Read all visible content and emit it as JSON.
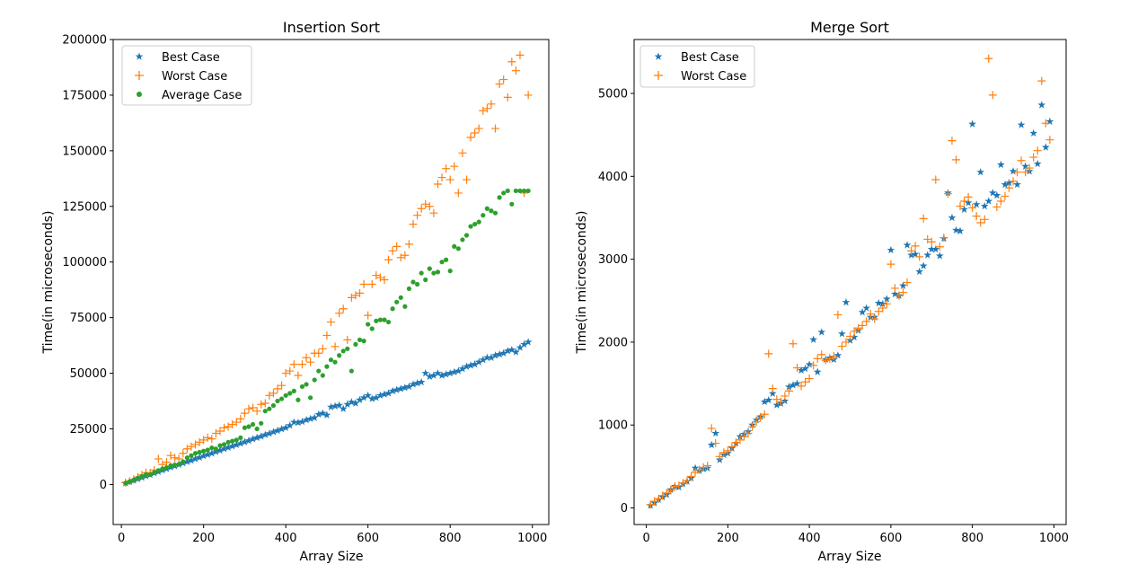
{
  "chart_data": [
    {
      "type": "scatter",
      "title": "Insertion Sort",
      "xlabel": "Array Size",
      "ylabel": "Time(in microseconds)",
      "xlim": [
        -20,
        1040
      ],
      "ylim": [
        -18000,
        200000
      ],
      "xticks": [
        "0",
        "200",
        "400",
        "600",
        "800",
        "1000"
      ],
      "yticks": [
        "0",
        "25000",
        "50000",
        "75000",
        "100000",
        "125000",
        "150000",
        "175000",
        "200000"
      ],
      "grid": false,
      "legend_position": "top-left",
      "series": [
        {
          "name": "Best Case",
          "marker": "star",
          "color": "#1f77b4",
          "x": [
            10,
            20,
            30,
            40,
            50,
            60,
            70,
            80,
            90,
            100,
            110,
            120,
            130,
            140,
            150,
            160,
            170,
            180,
            190,
            200,
            210,
            220,
            230,
            240,
            250,
            260,
            270,
            280,
            290,
            300,
            310,
            320,
            330,
            340,
            350,
            360,
            370,
            380,
            390,
            400,
            410,
            420,
            430,
            440,
            450,
            460,
            470,
            480,
            490,
            500,
            510,
            520,
            530,
            540,
            550,
            560,
            570,
            580,
            590,
            600,
            610,
            620,
            630,
            640,
            650,
            660,
            670,
            680,
            690,
            700,
            710,
            720,
            730,
            740,
            750,
            760,
            770,
            780,
            790,
            800,
            810,
            820,
            830,
            840,
            850,
            860,
            870,
            880,
            890,
            900,
            910,
            920,
            930,
            940,
            950,
            960,
            970,
            980,
            990
          ],
          "y": [
            600,
            1200,
            1800,
            2500,
            3100,
            3800,
            4400,
            5100,
            5700,
            6400,
            7000,
            7700,
            8300,
            8900,
            9600,
            10200,
            10800,
            11500,
            12100,
            12800,
            13400,
            14000,
            14700,
            15300,
            16000,
            16600,
            17200,
            17800,
            18400,
            19100,
            19700,
            20400,
            21000,
            21600,
            22300,
            22900,
            23600,
            24200,
            24900,
            25500,
            26500,
            28000,
            27800,
            28200,
            29000,
            29500,
            30000,
            31500,
            32000,
            31200,
            34800,
            35200,
            35600,
            34000,
            36000,
            37000,
            36500,
            38000,
            39000,
            40000,
            38500,
            39000,
            40000,
            40500,
            41000,
            42000,
            42500,
            43000,
            43500,
            44000,
            45000,
            45500,
            46000,
            50000,
            48500,
            49000,
            50000,
            49000,
            49500,
            50000,
            50500,
            51000,
            52000,
            53000,
            53500,
            54000,
            55000,
            56000,
            57000,
            57000,
            58000,
            58500,
            59000,
            60000,
            60500,
            59500,
            61500,
            63000,
            64000
          ]
        },
        {
          "name": "Worst Case",
          "marker": "plus",
          "color": "#ff7f0e",
          "x": [
            10,
            20,
            30,
            40,
            50,
            60,
            70,
            80,
            90,
            100,
            110,
            120,
            130,
            140,
            150,
            160,
            170,
            180,
            190,
            200,
            210,
            220,
            230,
            240,
            250,
            260,
            270,
            280,
            290,
            300,
            310,
            320,
            330,
            340,
            350,
            360,
            370,
            380,
            390,
            400,
            410,
            420,
            430,
            440,
            450,
            460,
            470,
            480,
            490,
            500,
            510,
            520,
            530,
            540,
            550,
            560,
            570,
            580,
            590,
            600,
            610,
            620,
            630,
            640,
            650,
            660,
            670,
            680,
            690,
            700,
            710,
            720,
            730,
            740,
            750,
            760,
            770,
            780,
            790,
            800,
            810,
            820,
            830,
            840,
            850,
            860,
            870,
            880,
            890,
            900,
            910,
            920,
            930,
            940,
            950,
            960,
            970,
            980,
            990
          ],
          "y": [
            800,
            1500,
            2300,
            3300,
            4300,
            5300,
            5200,
            6500,
            11500,
            9000,
            10000,
            13000,
            12000,
            11500,
            14000,
            16000,
            17000,
            18000,
            19000,
            20000,
            21000,
            20500,
            23000,
            24000,
            25500,
            26000,
            27000,
            28000,
            29500,
            32000,
            34000,
            34500,
            33000,
            36000,
            36500,
            40000,
            41000,
            43000,
            44500,
            50000,
            51000,
            54000,
            49000,
            54000,
            57000,
            55000,
            59000,
            59000,
            61000,
            67000,
            73000,
            62000,
            77000,
            79000,
            65000,
            84000,
            85000,
            86000,
            90000,
            76000,
            90000,
            94000,
            93000,
            92000,
            101000,
            105000,
            107000,
            102000,
            103000,
            108000,
            117000,
            121000,
            124000,
            126000,
            125000,
            122000,
            135000,
            138000,
            142000,
            137000,
            143000,
            131000,
            149000,
            137000,
            156000,
            158000,
            160000,
            168000,
            169000,
            171000,
            160000,
            180000,
            182000,
            174000,
            190000,
            186000,
            193000,
            131000,
            175000
          ],
          "note_count": ""
        },
        {
          "name": "Average Case",
          "marker": "dot",
          "color": "#2ca02c",
          "x": [
            10,
            20,
            30,
            40,
            50,
            60,
            70,
            80,
            90,
            100,
            110,
            120,
            130,
            140,
            150,
            160,
            170,
            180,
            190,
            200,
            210,
            220,
            230,
            240,
            250,
            260,
            270,
            280,
            290,
            300,
            310,
            320,
            330,
            340,
            350,
            360,
            370,
            380,
            390,
            400,
            410,
            420,
            430,
            440,
            450,
            460,
            470,
            480,
            490,
            500,
            510,
            520,
            530,
            540,
            550,
            560,
            570,
            580,
            590,
            600,
            610,
            620,
            630,
            640,
            650,
            660,
            670,
            680,
            690,
            700,
            710,
            720,
            730,
            740,
            750,
            760,
            770,
            780,
            790,
            800,
            810,
            820,
            830,
            840,
            850,
            860,
            870,
            880,
            890,
            900,
            910,
            920,
            930,
            940,
            950,
            960,
            970,
            980,
            990
          ],
          "y": [
            600,
            1300,
            2000,
            2900,
            3700,
            4500,
            4400,
            5400,
            6300,
            7100,
            7600,
            8500,
            8800,
            9100,
            10200,
            12000,
            13000,
            14000,
            14500,
            15000,
            15500,
            16500,
            16000,
            17500,
            18000,
            19000,
            19500,
            20000,
            21000,
            25500,
            26000,
            27000,
            25000,
            27500,
            33000,
            34000,
            35500,
            37500,
            38500,
            40000,
            41000,
            42000,
            38000,
            44000,
            45000,
            39000,
            47000,
            51000,
            49000,
            53000,
            56000,
            55000,
            58000,
            60000,
            61000,
            51000,
            63000,
            65000,
            64500,
            72000,
            70000,
            73500,
            74000,
            74000,
            73000,
            79000,
            82000,
            84000,
            80000,
            88000,
            91000,
            90000,
            95000,
            92000,
            97000,
            95000,
            95500,
            100000,
            101000,
            96000,
            107000,
            106000,
            110000,
            112000,
            116000,
            117000,
            118000,
            121000,
            124000,
            123000,
            122000,
            129000,
            131000,
            132000,
            126000,
            132000,
            132000,
            132000,
            132000
          ]
        }
      ]
    },
    {
      "type": "scatter",
      "title": "Merge Sort",
      "xlabel": "Array Size",
      "ylabel": "Time(in microseconds)",
      "xlim": [
        -30,
        1030
      ],
      "ylim": [
        -200,
        5650
      ],
      "xticks": [
        "0",
        "200",
        "400",
        "600",
        "800",
        "1000"
      ],
      "yticks": [
        "0",
        "1000",
        "2000",
        "3000",
        "4000",
        "5000"
      ],
      "grid": false,
      "legend_position": "top-left",
      "series": [
        {
          "name": "Best Case",
          "marker": "star",
          "color": "#1f77b4",
          "x": [
            10,
            20,
            30,
            40,
            50,
            60,
            70,
            80,
            90,
            100,
            110,
            120,
            130,
            140,
            150,
            160,
            170,
            180,
            190,
            200,
            210,
            220,
            230,
            240,
            250,
            260,
            270,
            280,
            290,
            300,
            310,
            320,
            330,
            340,
            350,
            360,
            370,
            380,
            390,
            400,
            410,
            420,
            430,
            440,
            450,
            460,
            470,
            480,
            490,
            500,
            510,
            520,
            530,
            540,
            550,
            560,
            570,
            580,
            590,
            600,
            610,
            620,
            630,
            640,
            650,
            660,
            670,
            680,
            690,
            700,
            710,
            720,
            730,
            740,
            750,
            760,
            770,
            780,
            790,
            800,
            810,
            820,
            830,
            840,
            850,
            860,
            870,
            880,
            890,
            900,
            910,
            920,
            930,
            940,
            950,
            960,
            970,
            980,
            990
          ],
          "y": [
            30,
            60,
            100,
            130,
            160,
            220,
            260,
            250,
            290,
            320,
            360,
            480,
            450,
            470,
            480,
            760,
            900,
            580,
            640,
            660,
            720,
            780,
            860,
            890,
            920,
            1000,
            1060,
            1100,
            1280,
            1300,
            1380,
            1240,
            1260,
            1290,
            1460,
            1480,
            1500,
            1660,
            1680,
            1730,
            2030,
            1640,
            2120,
            1790,
            1810,
            1790,
            1840,
            2100,
            2480,
            2020,
            2060,
            2140,
            2360,
            2410,
            2300,
            2300,
            2470,
            2460,
            2520,
            3110,
            2580,
            2560,
            2680,
            3170,
            3050,
            3060,
            2850,
            2920,
            3050,
            3120,
            3120,
            3040,
            3250,
            3800,
            3500,
            3350,
            3340,
            3600,
            3680,
            4630,
            3660,
            4050,
            3640,
            3700,
            3800,
            3770,
            4140,
            3900,
            3920,
            4060,
            3900,
            4620,
            4120,
            4060,
            4520,
            4150,
            4860,
            4350,
            4660
          ]
        },
        {
          "name": "Worst Case",
          "marker": "plus",
          "color": "#ff7f0e",
          "x": [
            10,
            20,
            30,
            40,
            50,
            60,
            70,
            80,
            90,
            100,
            110,
            120,
            130,
            140,
            150,
            160,
            170,
            180,
            190,
            200,
            210,
            220,
            230,
            240,
            250,
            260,
            270,
            280,
            290,
            300,
            310,
            320,
            330,
            340,
            350,
            360,
            370,
            380,
            390,
            400,
            410,
            420,
            430,
            440,
            450,
            460,
            470,
            480,
            490,
            500,
            510,
            520,
            530,
            540,
            550,
            560,
            570,
            580,
            590,
            600,
            610,
            620,
            630,
            640,
            650,
            660,
            670,
            680,
            690,
            700,
            710,
            720,
            730,
            740,
            750,
            760,
            770,
            780,
            790,
            800,
            810,
            820,
            830,
            840,
            850,
            860,
            870,
            880,
            890,
            900,
            910,
            920,
            930,
            940,
            950,
            960,
            970,
            980,
            990
          ],
          "y": [
            40,
            80,
            110,
            150,
            180,
            210,
            260,
            270,
            300,
            330,
            380,
            430,
            460,
            490,
            510,
            960,
            780,
            620,
            670,
            690,
            740,
            790,
            820,
            860,
            900,
            980,
            1040,
            1090,
            1130,
            1860,
            1440,
            1310,
            1280,
            1350,
            1410,
            1980,
            1690,
            1470,
            1520,
            1560,
            1720,
            1800,
            1850,
            1780,
            1800,
            1830,
            2330,
            1950,
            2000,
            2070,
            2130,
            2170,
            2200,
            2250,
            2340,
            2280,
            2370,
            2410,
            2460,
            2940,
            2650,
            2560,
            2600,
            2720,
            3100,
            3160,
            3030,
            3490,
            3240,
            3210,
            3960,
            3150,
            3260,
            3790,
            4430,
            4200,
            3640,
            3700,
            3750,
            3620,
            3520,
            3440,
            3480,
            5420,
            4980,
            3630,
            3700,
            3760,
            3860,
            3940,
            4050,
            4190,
            4050,
            4100,
            4230,
            4310,
            5150,
            4640,
            4440
          ]
        }
      ]
    }
  ]
}
